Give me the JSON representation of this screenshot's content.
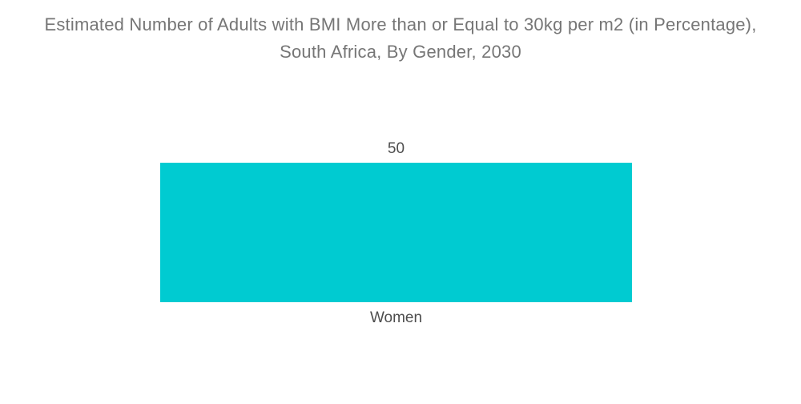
{
  "header": {
    "title_line1": "Estimated Number of Adults with BMI More than or Equal to 30kg per m2 (in Percentage),",
    "title_line2": "South Africa, By Gender, 2030"
  },
  "colors": {
    "bar": "#00CBD1",
    "title_text": "#767676",
    "label_text": "#4d4d4d",
    "background": "#ffffff"
  },
  "chart_data": {
    "type": "bar",
    "title": "Estimated Number of Adults with BMI More than or Equal to 30kg per m2 (in Percentage), South Africa, By Gender, 2030",
    "categories": [
      "Women"
    ],
    "values": [
      50
    ],
    "value_labels": [
      "50"
    ],
    "xlabel": "",
    "ylabel": "",
    "ylim": [
      0,
      50
    ],
    "grid": false,
    "legend": false,
    "bar_color": "#00CBD1"
  }
}
